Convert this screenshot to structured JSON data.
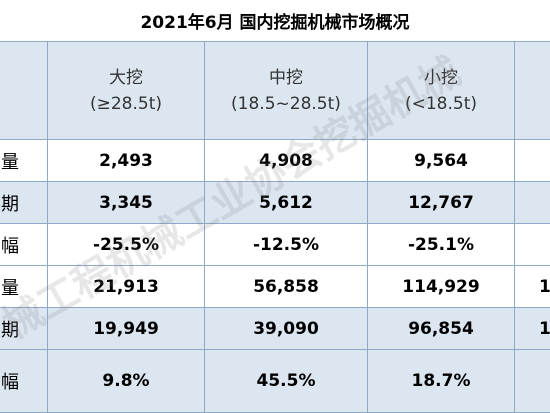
{
  "title": "2021年6月 国内挖掘机械市场概况",
  "table": {
    "header": [
      [
        "大挖",
        "(≥28.5t)"
      ],
      [
        "中挖",
        "(18.5~28.5t)"
      ],
      [
        "小挖",
        "(<18.5t)"
      ]
    ],
    "rows": [
      [
        "量",
        "2,493",
        "4,908",
        "9,564",
        ""
      ],
      [
        "期",
        "3,345",
        "5,612",
        "12,767",
        ""
      ],
      [
        "幅",
        "-25.5%",
        "-12.5%",
        "-25.1%",
        ""
      ],
      [
        "量",
        "21,913",
        "56,858",
        "114,929",
        "1"
      ],
      [
        "期",
        "19,949",
        "39,090",
        "96,854",
        "1"
      ],
      [
        "幅",
        "9.8%",
        "45.5%",
        "18.7%",
        ""
      ]
    ]
  },
  "watermark": "械工程机械工业协会挖掘机械"
}
